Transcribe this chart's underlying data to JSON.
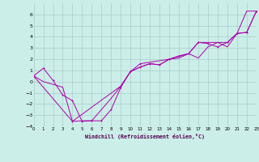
{
  "xlabel": "Windchill (Refroidissement éolien,°C)",
  "bg_color": "#cceee8",
  "grid_color": "#aacccc",
  "line_color": "#aa00aa",
  "xlim": [
    0,
    23
  ],
  "ylim": [
    -4,
    7
  ],
  "xticks": [
    0,
    1,
    2,
    3,
    4,
    5,
    6,
    7,
    8,
    9,
    10,
    11,
    12,
    13,
    14,
    15,
    16,
    17,
    18,
    19,
    20,
    21,
    22,
    23
  ],
  "yticks": [
    -4,
    -3,
    -2,
    -1,
    0,
    1,
    2,
    3,
    4,
    5,
    6
  ],
  "series1_x": [
    0,
    1,
    2,
    3,
    4,
    5,
    6,
    7,
    8,
    9,
    10,
    11,
    12,
    13,
    14,
    15,
    16,
    17,
    18,
    19,
    20,
    21,
    22,
    23
  ],
  "series1_y": [
    0.5,
    1.2,
    0.1,
    -1.2,
    -1.7,
    -3.55,
    -3.5,
    -3.5,
    -2.5,
    -0.5,
    0.9,
    1.3,
    1.6,
    1.5,
    2.0,
    2.3,
    2.5,
    3.5,
    3.4,
    3.1,
    3.5,
    4.3,
    4.4,
    6.3
  ],
  "series2_x": [
    0,
    1,
    2,
    3,
    4,
    5,
    6,
    7,
    8,
    9,
    10,
    11,
    12,
    13,
    14,
    15,
    16,
    17,
    18,
    19,
    20,
    21,
    22,
    23
  ],
  "series2_y": [
    0.5,
    0.0,
    -0.25,
    -0.5,
    -3.55,
    -3.5,
    -3.5,
    -2.5,
    -1.5,
    -0.4,
    0.9,
    1.3,
    1.6,
    1.5,
    2.0,
    2.1,
    2.5,
    2.1,
    3.1,
    3.5,
    3.1,
    4.3,
    6.3,
    6.3
  ],
  "series3_x": [
    0,
    4,
    9,
    10,
    11,
    14,
    16,
    17,
    20,
    21,
    22,
    23
  ],
  "series3_y": [
    0.5,
    -3.55,
    -0.4,
    0.9,
    1.6,
    2.0,
    2.5,
    3.5,
    3.5,
    4.3,
    4.4,
    6.3
  ]
}
